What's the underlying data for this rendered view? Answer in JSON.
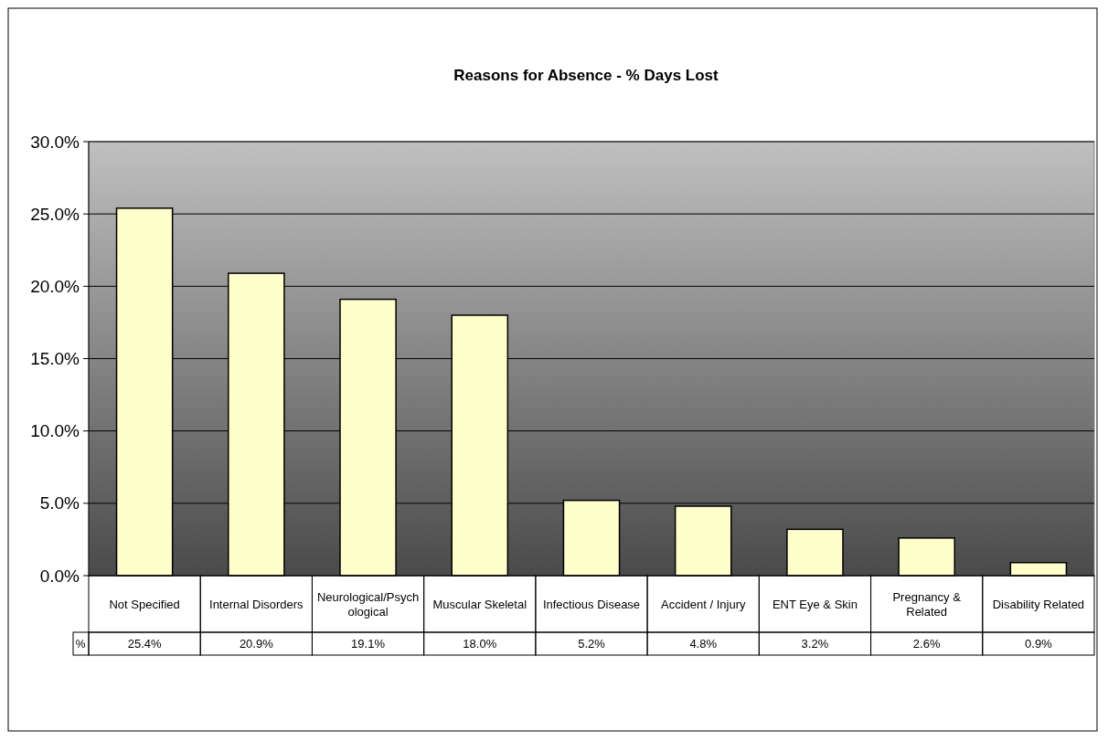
{
  "chart_data": {
    "type": "bar",
    "title": "Reasons for Absence - % Days Lost",
    "categories": [
      "Not Specified",
      "Internal Disorders",
      "Neurological/Psychological",
      "Muscular Skeletal",
      "Infectious Disease",
      "Accident / Injury",
      "ENT Eye & Skin",
      "Pregnancy & Related",
      "Disability Related"
    ],
    "series": [
      {
        "name": "%",
        "color": "#ffffcc",
        "values": [
          25.4,
          20.9,
          19.1,
          18.0,
          5.2,
          4.8,
          3.2,
          2.6,
          0.9
        ]
      }
    ],
    "value_labels": [
      "25.4%",
      "20.9%",
      "19.1%",
      "18.0%",
      "5.2%",
      "4.8%",
      "3.2%",
      "2.6%",
      "0.9%"
    ],
    "ylim": [
      0,
      30
    ],
    "yticks": [
      {
        "value": 0,
        "label": "0.0%"
      },
      {
        "value": 5,
        "label": "5.0%"
      },
      {
        "value": 10,
        "label": "10.0%"
      },
      {
        "value": 15,
        "label": "15.0%"
      },
      {
        "value": 20,
        "label": "20.0%"
      },
      {
        "value": 25,
        "label": "25.0%"
      },
      {
        "value": 30,
        "label": "30.0%"
      }
    ],
    "grid": "y"
  }
}
